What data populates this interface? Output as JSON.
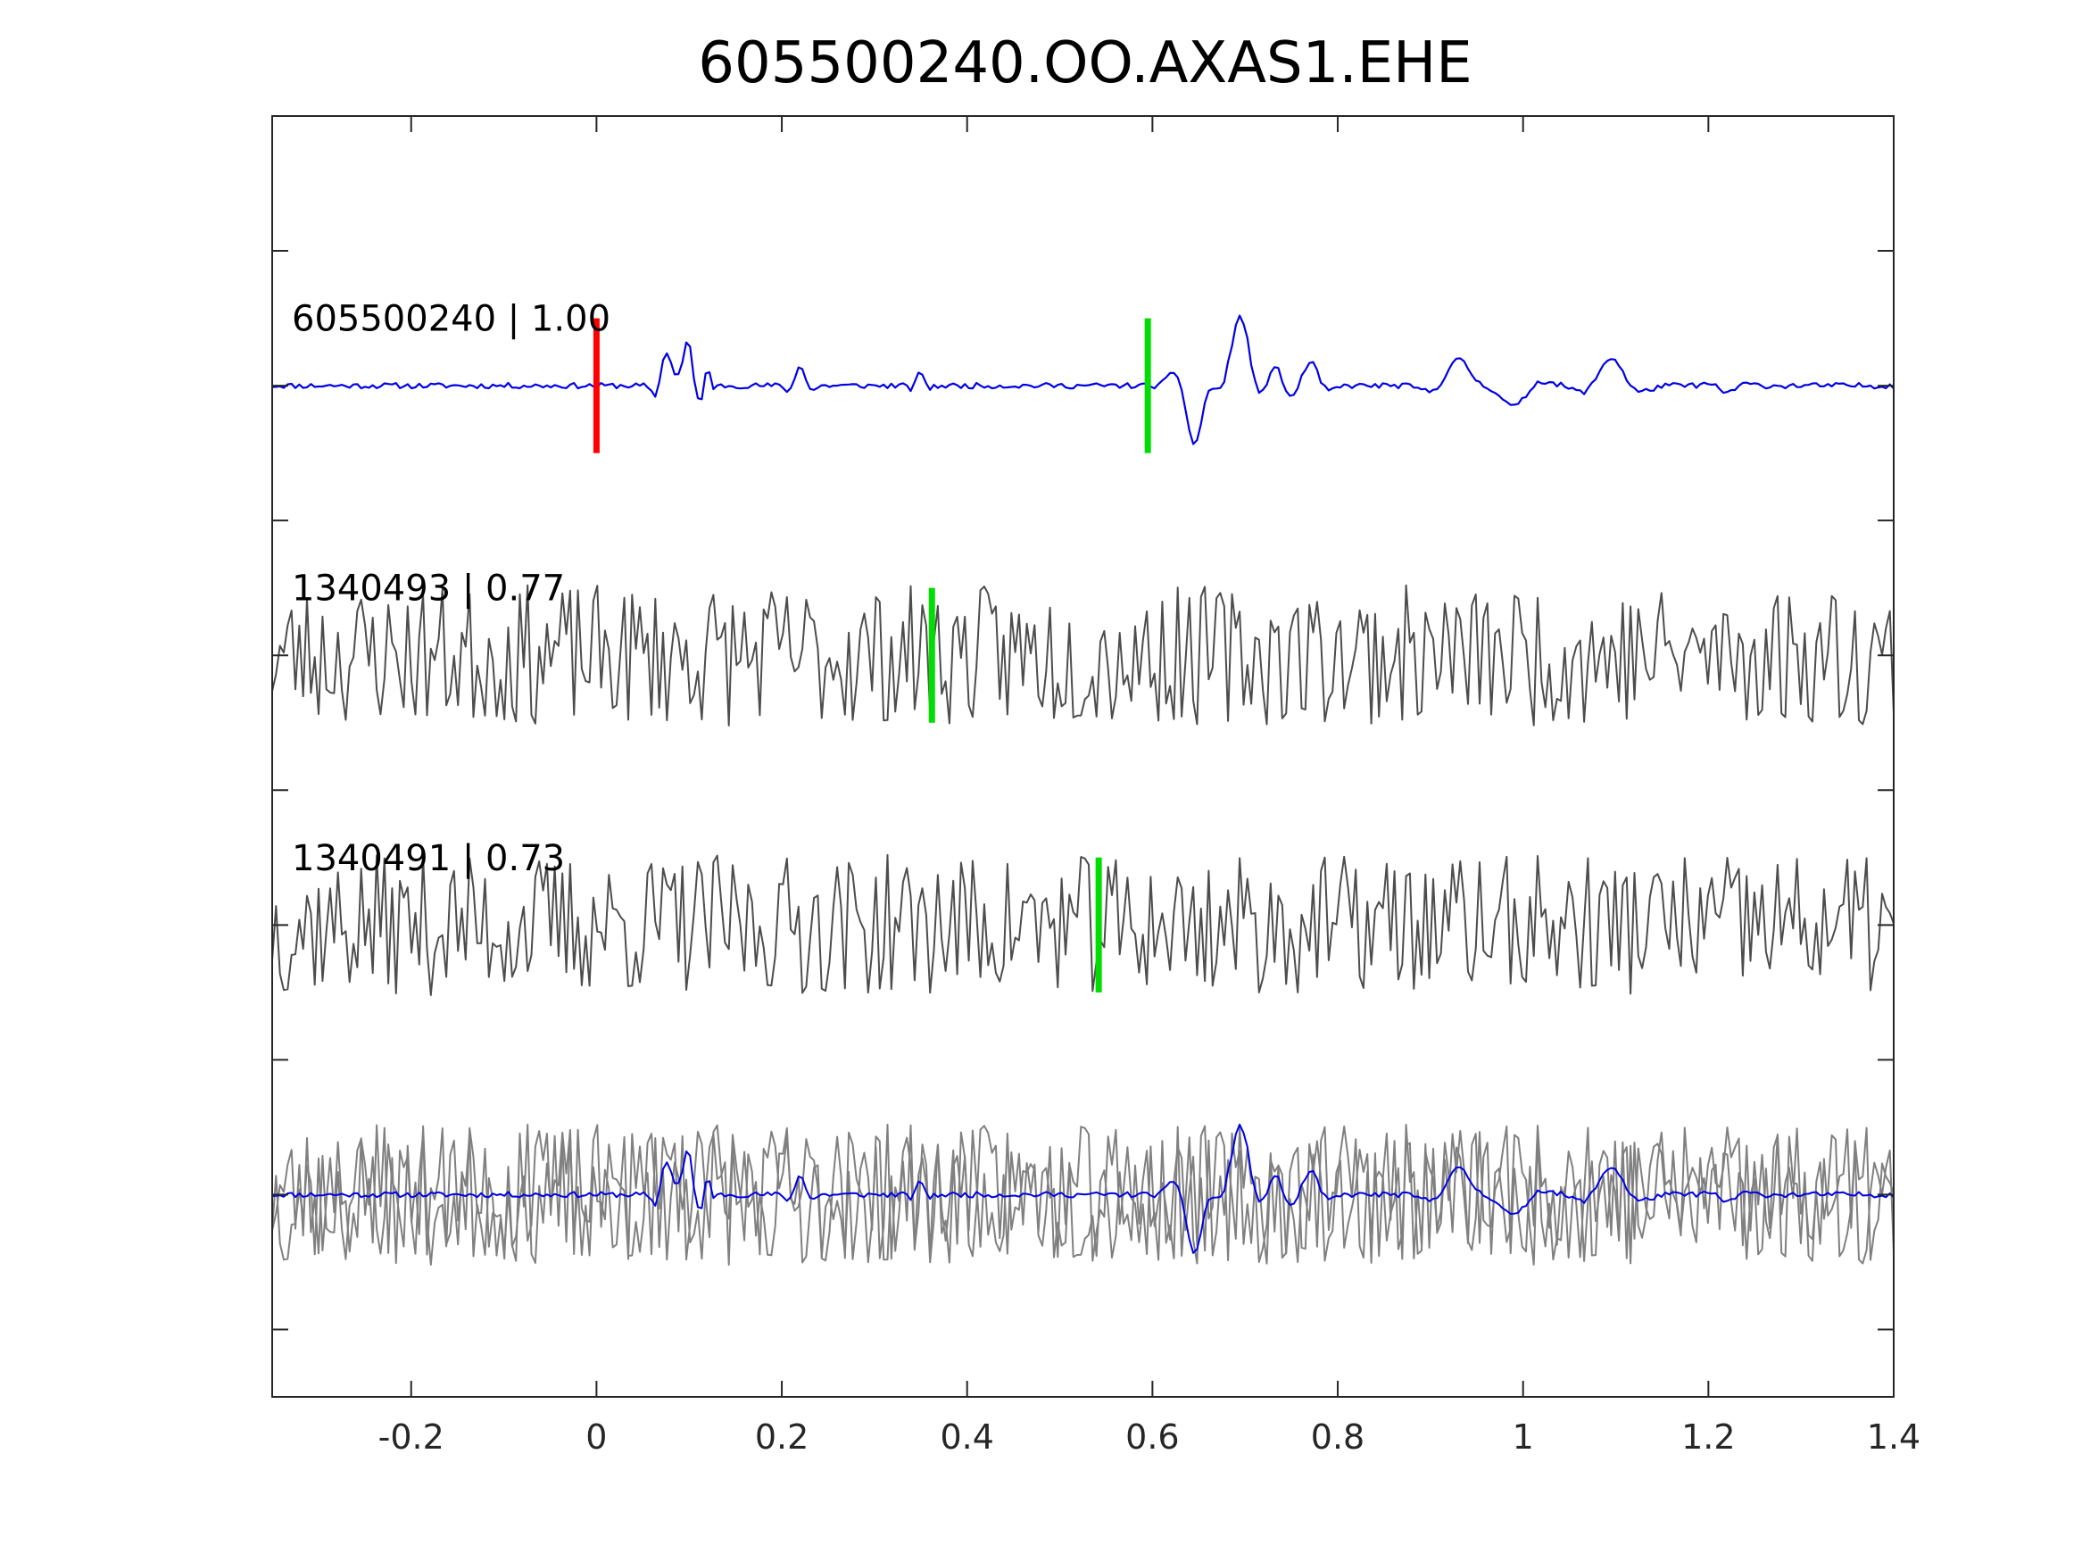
{
  "chart_data": {
    "type": "line",
    "title": "605500240.OO.AXAS1.EHE",
    "xlabel": "",
    "ylabel": "",
    "xlim": [
      -0.35,
      1.4
    ],
    "ylim": [
      0,
      9.5
    ],
    "x_ticks": [
      -0.2,
      0,
      0.2,
      0.4,
      0.6,
      0.8,
      1,
      1.2,
      1.4
    ],
    "x_tick_labels": [
      "-0.2",
      "0",
      "0.2",
      "0.4",
      "0.6",
      "0.8",
      "1",
      "1.2",
      "1.4"
    ],
    "y_ticks": [
      0.5,
      1.5,
      2.5,
      3.5,
      4.5,
      5.5,
      6.5,
      7.5,
      8.5
    ],
    "y_tick_labels": [],
    "grid": false,
    "traces": [
      {
        "label": "605500240 | 1.00",
        "name": "605500240",
        "cc": "1.00",
        "color": "#0000e6",
        "baseline": 7.5,
        "amplitude": 1.0,
        "segments": [
          [
            -0.35,
            0.0,
            0.0
          ],
          [
            -0.34,
            0.01,
            0.015
          ],
          [
            0.05,
            0.0,
            0.005
          ],
          [
            0.075,
            1.8,
            0.012
          ],
          [
            0.09,
            1.4,
            0.015
          ],
          [
            0.1,
            1.8,
            0.01
          ],
          [
            0.12,
            1.0,
            0.006
          ],
          [
            0.22,
            0.9,
            0.012
          ],
          [
            0.35,
            0.6,
            0.01
          ],
          [
            0.55,
            0.0,
            0.01
          ],
          [
            0.645,
            -2.5,
            0.02
          ],
          [
            0.695,
            3.0,
            0.025
          ],
          [
            0.73,
            1.2,
            0.02
          ],
          [
            0.77,
            1.0,
            0.02
          ],
          [
            0.93,
            1.1,
            0.03
          ],
          [
            0.99,
            -0.9,
            0.03
          ],
          [
            1.095,
            1.2,
            0.03
          ],
          [
            1.22,
            -0.3,
            0.02
          ]
        ],
        "noise": 0.12,
        "seed": 11
      },
      {
        "label": "1340493 | 0.77",
        "name": "1340493",
        "cc": "0.77",
        "color": "#4d4d4d",
        "baseline": 5.5,
        "amplitude": 1.0,
        "noise": 1.1,
        "seed": 23
      },
      {
        "label": "1340491 | 0.73",
        "name": "1340491",
        "cc": "0.73",
        "color": "#4d4d4d",
        "baseline": 3.5,
        "amplitude": 1.0,
        "noise": 1.0,
        "seed": 37
      }
    ],
    "stack": {
      "baseline": 1.5,
      "background_color": "#808080",
      "overlay_color": "#0000e6"
    },
    "picks": [
      {
        "trace": 0,
        "x": 0.0,
        "color": "#ff0000"
      },
      {
        "trace": 0,
        "x": 0.595,
        "color": "#00dd00"
      },
      {
        "trace": 1,
        "x": 0.362,
        "color": "#00dd00"
      },
      {
        "trace": 2,
        "x": 0.542,
        "color": "#00dd00"
      }
    ]
  }
}
